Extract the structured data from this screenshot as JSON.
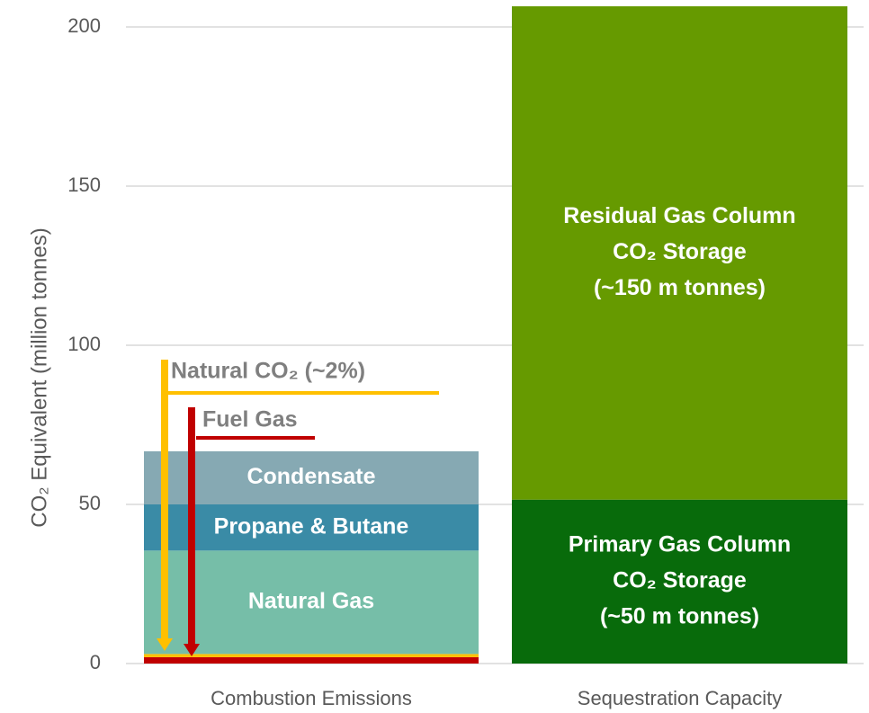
{
  "chart_data": {
    "type": "stacked_bar",
    "y_label": "CO₂ Equivalent (million tonnes)",
    "categories": [
      "Combustion Emissions",
      "Sequestration Capacity"
    ],
    "series": [
      {
        "label_lines": [
          "Fuel Gas"
        ],
        "color": "#c00000",
        "values": [
          2,
          null
        ]
      },
      {
        "label_lines": [
          "Natural CO₂ (~2%)"
        ],
        "color": "#ffc000",
        "values": [
          1,
          null
        ]
      },
      {
        "label_lines": [
          "Natural Gas"
        ],
        "color": "#76bea8",
        "values": [
          32.5,
          null
        ]
      },
      {
        "label_lines": [
          "Propane & Butane"
        ],
        "color": "#3a8ba6",
        "values": [
          14.5,
          null
        ]
      },
      {
        "label_lines": [
          "Condensate"
        ],
        "color": "#86a9b3",
        "values": [
          16.7,
          null
        ]
      },
      {
        "label_lines": [
          "Primary Gas Column",
          "CO₂ Storage",
          "(~50 m tonnes)"
        ],
        "color": "#086b0b",
        "values": [
          null,
          51.5
        ]
      },
      {
        "label_lines": [
          "Residual Gas Column",
          "CO₂ Storage",
          "(~150 m tonnes)"
        ],
        "color": "#669a00",
        "values": [
          null,
          155
        ]
      }
    ],
    "ylim": [
      0,
      200
    ],
    "yticks": [
      0,
      50,
      100,
      150,
      200
    ],
    "grid": true
  }
}
